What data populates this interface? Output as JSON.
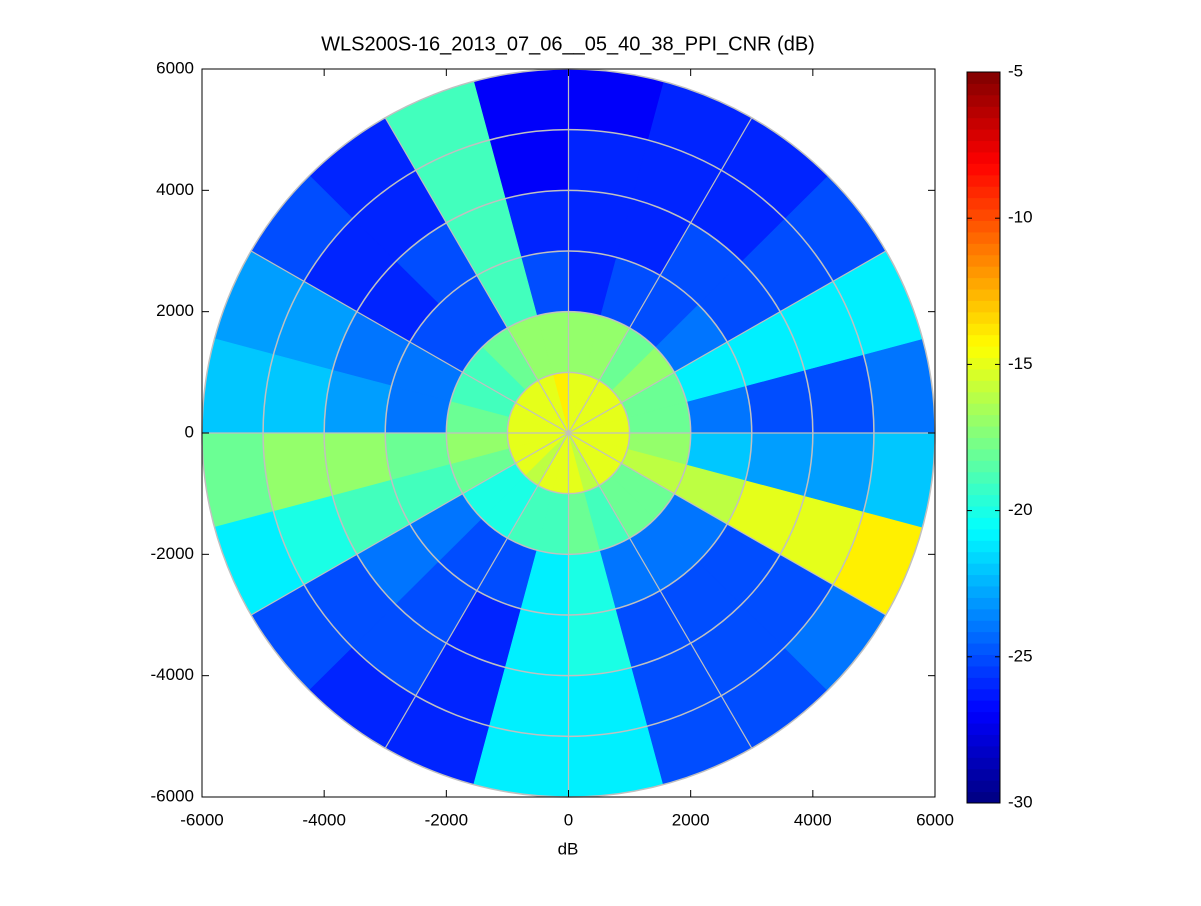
{
  "chart_data": {
    "type": "polar_heatmap",
    "title": "WLS200S-16_2013_07_06__05_40_38_PPI_CNR (dB)",
    "xlabel": "dB",
    "xlim": [
      -6000,
      6000
    ],
    "ylim": [
      -6000,
      6000
    ],
    "xticks": [
      -6000,
      -4000,
      -2000,
      0,
      2000,
      4000,
      6000
    ],
    "yticks": [
      -6000,
      -4000,
      -2000,
      0,
      2000,
      4000,
      6000
    ],
    "range_bins": [
      0,
      1000,
      2000,
      3000,
      4000,
      5000,
      6000
    ],
    "azimuth_bins": [
      0,
      15,
      30,
      45,
      60,
      75,
      90,
      105,
      120,
      135,
      150,
      165,
      180,
      195,
      210,
      225,
      240,
      255,
      270,
      285,
      300,
      315,
      330,
      345,
      360
    ],
    "values": [
      [
        -15,
        -15,
        -15,
        -15,
        -15,
        -15,
        -14,
        -15,
        -15,
        -15,
        -15,
        -15,
        -15,
        -15,
        -15,
        -16,
        -15,
        -15,
        -15,
        -16,
        -15,
        -15,
        -15,
        -15
      ],
      [
        -18,
        -18,
        -17,
        -18,
        -17,
        -17,
        -17,
        -17,
        -18,
        -19,
        -19,
        -18,
        -17,
        -18,
        -20,
        -20,
        -19,
        -19,
        -18,
        -19,
        -18,
        -18,
        -16,
        -17
      ],
      [
        -24,
        -21,
        -24,
        -25,
        -25,
        -26,
        -25,
        -19,
        -25,
        -25,
        -24,
        -24,
        -18,
        -19,
        -24,
        -25,
        -25,
        -21,
        -20,
        -24,
        -24,
        -24,
        -16,
        -22
      ],
      [
        -25,
        -21,
        -25,
        -25,
        -26,
        -26,
        -26,
        -19,
        -25,
        -26,
        -24,
        -23,
        -17,
        -19,
        -24,
        -25,
        -26,
        -21,
        -20,
        -25,
        -25,
        -25,
        -15,
        -23
      ],
      [
        -25,
        -21,
        -25,
        -26,
        -26,
        -26,
        -27,
        -19,
        -26,
        -26,
        -23,
        -22,
        -17,
        -20,
        -25,
        -25,
        -26,
        -21,
        -21,
        -25,
        -25,
        -25,
        -15,
        -23
      ],
      [
        -24,
        -21,
        -25,
        -26,
        -26,
        -27,
        -27,
        -19,
        -26,
        -25,
        -23,
        -22,
        -18,
        -21,
        -25,
        -26,
        -26,
        -21,
        -21,
        -25,
        -25,
        -24,
        -14,
        -22
      ]
    ],
    "colormap": "jet",
    "clim": [
      -30,
      -5
    ],
    "cticks": [
      -30,
      -25,
      -20,
      -15,
      -10,
      -5
    ],
    "grid": true
  }
}
